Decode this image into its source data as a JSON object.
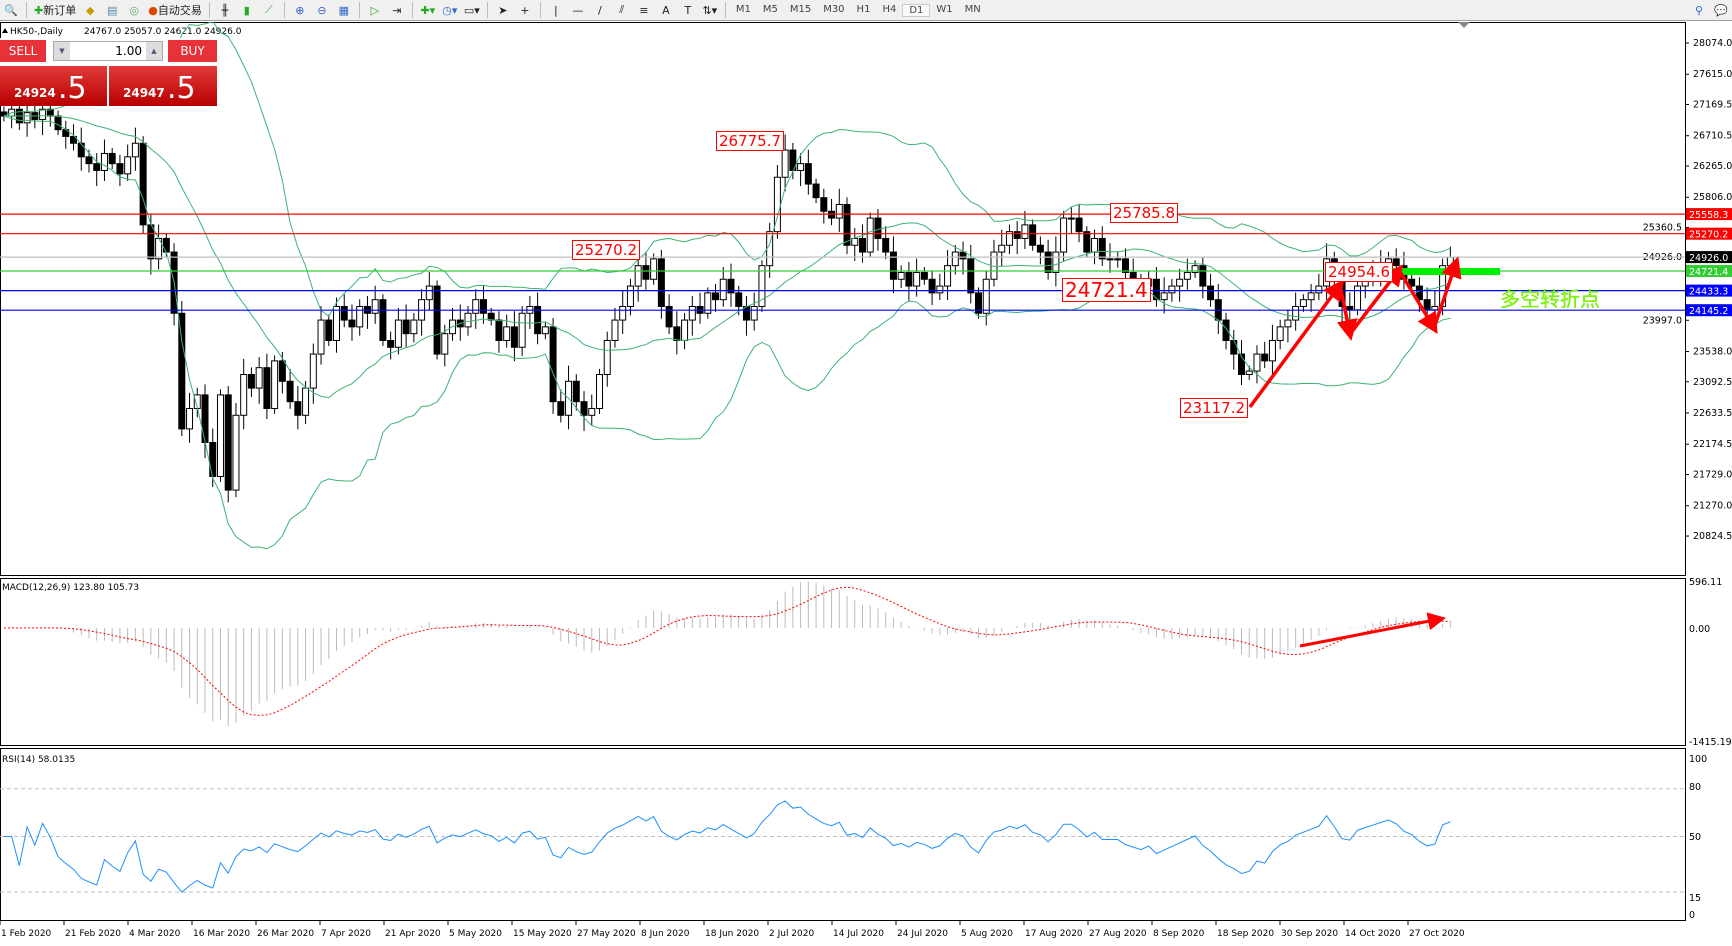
{
  "toolbar": {
    "new_order": "新订单",
    "auto_trading": "自动交易",
    "timeframes": [
      "M1",
      "M5",
      "M15",
      "M30",
      "H1",
      "H4",
      "D1",
      "W1",
      "MN"
    ],
    "active_timeframe": "D1"
  },
  "chart": {
    "title": "HK50-,Daily",
    "ohlc": "24767.0 25057.0 24621.0 24926.0"
  },
  "trade_panel": {
    "sell": "SELL",
    "buy": "BUY",
    "lot": "1.00",
    "bid_main": "24924",
    "bid_frac": ".5",
    "ask_main": "24947",
    "ask_frac": ".5",
    "color": "#e8323a"
  },
  "price_axis": [
    "28074.0",
    "27615.0",
    "27169.5",
    "26710.5",
    "26265.0",
    "25806.0",
    "25360.5",
    "24926.0",
    "23997.0",
    "23538.0",
    "23092.5",
    "22633.5",
    "22174.5",
    "21729.0",
    "21270.0",
    "20824.5"
  ],
  "price_range": [
    20824.5,
    28074.0
  ],
  "levels": [
    {
      "price": "25558.3",
      "color": "#ff0000"
    },
    {
      "price": "25270.2",
      "color": "#ff0000"
    },
    {
      "price": "24926.0",
      "color": "#000000",
      "line": "#c0c0c0"
    },
    {
      "price": "24721.4",
      "color": "#32cd32"
    },
    {
      "price": "24433.3",
      "color": "#0000ff"
    },
    {
      "price": "24145.2",
      "color": "#0000ff"
    }
  ],
  "annotations": [
    "26775.7",
    "25270.2",
    "25785.8",
    "24721.4",
    "23117.2",
    "24954.6"
  ],
  "turning_point_label": "多空转折点",
  "macd": {
    "label": "MACD(12,26,9) 123.80 105.73",
    "axis": [
      "596.11",
      "0.00",
      "-1415.19"
    ]
  },
  "rsi": {
    "label": "RSI(14) 58.0135",
    "axis": [
      "100",
      "80",
      "50",
      "15",
      "0"
    ]
  },
  "dates": [
    "1 Feb 2020",
    "21 Feb 2020",
    "4 Mar 2020",
    "16 Mar 2020",
    "26 Mar 2020",
    "7 Apr 2020",
    "21 Apr 2020",
    "5 May 2020",
    "15 May 2020",
    "27 May 2020",
    "8 Jun 2020",
    "18 Jun 2020",
    "2 Jul 2020",
    "14 Jul 2020",
    "24 Jul 2020",
    "5 Aug 2020",
    "17 Aug 2020",
    "27 Aug 2020",
    "8 Sep 2020",
    "18 Sep 2020",
    "30 Sep 2020",
    "14 Oct 2020",
    "27 Oct 2020"
  ],
  "chart_data": {
    "type": "candlestick",
    "closes": [
      27000,
      27100,
      26900,
      27050,
      26950,
      27100,
      27000,
      26800,
      26700,
      26600,
      26400,
      26300,
      26200,
      26450,
      26300,
      26150,
      26400,
      26600,
      25400,
      24900,
      25200,
      25000,
      24100,
      22400,
      22700,
      22900,
      22200,
      21700,
      22900,
      21500,
      22600,
      23200,
      23000,
      23300,
      22700,
      23400,
      23100,
      22800,
      22600,
      23000,
      23500,
      24000,
      23700,
      24200,
      24000,
      23900,
      24200,
      24100,
      24300,
      23700,
      23600,
      24000,
      23800,
      24000,
      24300,
      24500,
      23500,
      23800,
      24000,
      23900,
      24100,
      24300,
      24100,
      24000,
      23700,
      23900,
      23600,
      24100,
      24200,
      23800,
      23900,
      22800,
      22600,
      23100,
      22800,
      22600,
      22700,
      23200,
      23700,
      24000,
      24200,
      24500,
      24800,
      24600,
      24900,
      24200,
      23900,
      23700,
      24000,
      24200,
      24100,
      24400,
      24300,
      24600,
      24400,
      24200,
      24000,
      24200,
      24800,
      25300,
      26100,
      26500,
      26200,
      26300,
      26000,
      25800,
      25600,
      25500,
      25700,
      25100,
      25200,
      25000,
      25500,
      25200,
      25000,
      24600,
      24700,
      24500,
      24700,
      24600,
      24400,
      24500,
      24800,
      25000,
      24900,
      24400,
      24100,
      24600,
      25000,
      25100,
      25300,
      25200,
      25400,
      25100,
      25000,
      24700,
      25000,
      25500,
      25500,
      25300,
      25000,
      25200,
      24900,
      24900,
      24900,
      24700,
      24600,
      24500,
      24600,
      24300,
      24400,
      24500,
      24600,
      24700,
      24800,
      24500,
      24300,
      24000,
      23700,
      23500,
      23200,
      23250,
      23500,
      23400,
      23700,
      23900,
      24000,
      24200,
      24300,
      24400,
      24500,
      24900,
      24600,
      24200,
      24150,
      24500,
      24600,
      24700,
      24800,
      24900,
      24800,
      24600,
      24500,
      24300,
      24150,
      24200,
      24800,
      24926
    ]
  }
}
